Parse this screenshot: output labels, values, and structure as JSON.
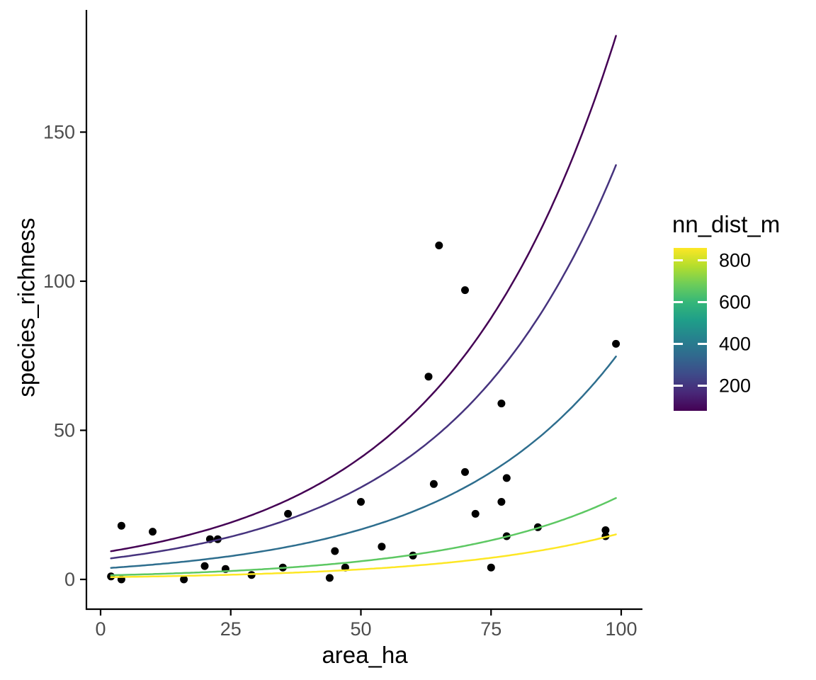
{
  "chart_data": {
    "type": "scatter",
    "title": "",
    "xlabel": "area_ha",
    "ylabel": "species_richness",
    "x_ticks": [
      0,
      25,
      50,
      75,
      100
    ],
    "y_ticks": [
      0,
      50,
      100,
      150
    ],
    "xlim": [
      -2.7,
      104
    ],
    "ylim": [
      -10,
      192
    ],
    "grid": false,
    "legend_position": "right",
    "point_color": "#000000",
    "axis_color": "#000000",
    "tick_label_color": "#4D4D4D",
    "points": [
      [
        2,
        1
      ],
      [
        4,
        0
      ],
      [
        4,
        18
      ],
      [
        10,
        16
      ],
      [
        16,
        0
      ],
      [
        20,
        4.5
      ],
      [
        21,
        13.5
      ],
      [
        22.5,
        13.5
      ],
      [
        24,
        3.5
      ],
      [
        29,
        1.5
      ],
      [
        35,
        4
      ],
      [
        36,
        22
      ],
      [
        44,
        0.5
      ],
      [
        45,
        9.5
      ],
      [
        47,
        4
      ],
      [
        50,
        26
      ],
      [
        54,
        11
      ],
      [
        60,
        8
      ],
      [
        63,
        68
      ],
      [
        64,
        32
      ],
      [
        65,
        112
      ],
      [
        70,
        97
      ],
      [
        70,
        36
      ],
      [
        72,
        22
      ],
      [
        75,
        4
      ],
      [
        77,
        26
      ],
      [
        77,
        59
      ],
      [
        78,
        34
      ],
      [
        78,
        14.5
      ],
      [
        84,
        17.5
      ],
      [
        97,
        16.5
      ],
      [
        97,
        14.5
      ],
      [
        99,
        79
      ]
    ],
    "curves": [
      {
        "nn_dist_m": 85,
        "color": "#440154",
        "a": 8.9,
        "b": 0.0305,
        "x_range": [
          2,
          99
        ],
        "y_end": 183
      },
      {
        "nn_dist_m": 200,
        "color": "#46337E",
        "a": 6.65,
        "b": 0.0307,
        "x_range": [
          2,
          99
        ],
        "y_end": 139
      },
      {
        "nn_dist_m": 390,
        "color": "#2E6E8E",
        "a": 3.65,
        "b": 0.0305,
        "x_range": [
          2,
          99
        ],
        "y_end": 75
      },
      {
        "nn_dist_m": 630,
        "color": "#5DC863",
        "a": 1.32,
        "b": 0.0306,
        "x_range": [
          2,
          99
        ],
        "y_end": 27
      },
      {
        "nn_dist_m": 860,
        "color": "#FDE725",
        "a": 0.73,
        "b": 0.0306,
        "x_range": [
          2,
          99
        ],
        "y_end": 15
      }
    ],
    "legend": {
      "title": "nn_dist_m",
      "ticks": [
        800,
        600,
        400,
        200
      ],
      "domain": [
        81,
        861
      ],
      "gradient": [
        "#440154",
        "#482878",
        "#3E4A89",
        "#31688E",
        "#26828E",
        "#1F9E89",
        "#35B779",
        "#6DCD59",
        "#B4DE2C",
        "#FDE725"
      ]
    }
  }
}
